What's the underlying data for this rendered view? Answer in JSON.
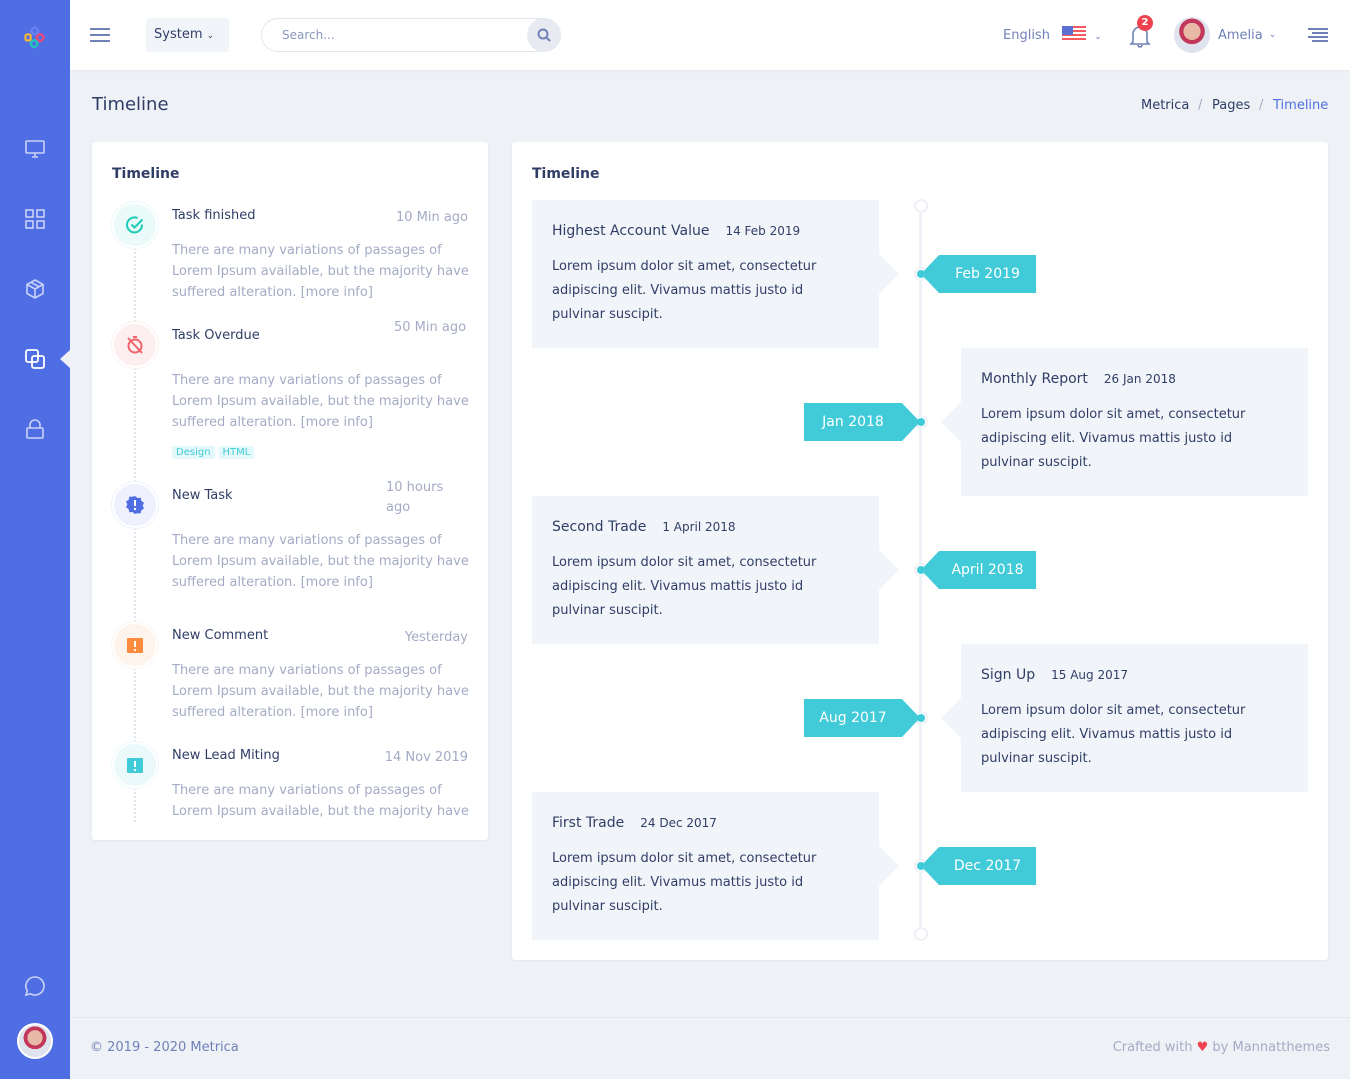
{
  "topbar": {
    "system_label": "System",
    "search_placeholder": "Search...",
    "language": "English",
    "notification_count": "2",
    "user_name": "Amelia"
  },
  "page": {
    "title": "Timeline",
    "breadcrumb": [
      "Metrica",
      "Pages",
      "Timeline"
    ]
  },
  "activity": {
    "title": "Timeline",
    "items": [
      {
        "title": "Task finished",
        "time": "10 Min ago",
        "text": "There are many variations of passages of Lorem Ipsum available, but the majority have suffered alteration.",
        "link": "[more info]",
        "icon": "check-circle-icon",
        "color": "#1ecab8",
        "bg": "#e9faf8"
      },
      {
        "title": "Task Overdue",
        "time": "50 Min ago",
        "text": "There are many variations of passages of Lorem Ipsum available, but the majority have suffered alteration.",
        "link": "[more info]",
        "icon": "timer-off-icon",
        "color": "#f1646c",
        "bg": "#fdeef0",
        "tags": [
          "Design",
          "HTML"
        ]
      },
      {
        "title": "New Task",
        "time": "10 hours ago",
        "text": "There are many variations of passages of Lorem Ipsum available, but the majority have suffered alteration.",
        "link": "[more info]",
        "icon": "alert-badge-icon",
        "color": "#506ee4",
        "bg": "#eef1fd"
      },
      {
        "title": "New Comment",
        "time": "Yesterday",
        "text": "There are many variations of passages of Lorem Ipsum available, but the majority have suffered alteration.",
        "link": "[more info]",
        "icon": "clipboard-alert-icon",
        "color": "#fd8b3e",
        "bg": "#fff4ec"
      },
      {
        "title": "New Lead Miting",
        "time": "14 Nov 2019",
        "text": "There are many variations of passages of Lorem Ipsum available, but the majority have",
        "link": "",
        "icon": "clipboard-alert-icon",
        "color": "#41cbd8",
        "bg": "#ecf9fb"
      }
    ]
  },
  "timeline": {
    "title": "Timeline",
    "items": [
      {
        "title": "Highest Account Value",
        "date": "14 Feb 2019",
        "text": "Lorem ipsum dolor sit amet, consectetur adipiscing elit. Vivamus mattis justo id pulvinar suscipit.",
        "badge": "Feb 2019",
        "side": "left"
      },
      {
        "title": "Monthly Report",
        "date": "26 Jan 2018",
        "text": "Lorem ipsum dolor sit amet, consectetur adipiscing elit. Vivamus mattis justo id pulvinar suscipit.",
        "badge": "Jan 2018",
        "side": "right"
      },
      {
        "title": "Second Trade",
        "date": "1 April 2018",
        "text": "Lorem ipsum dolor sit amet, consectetur adipiscing elit. Vivamus mattis justo id pulvinar suscipit.",
        "badge": "April 2018",
        "side": "left"
      },
      {
        "title": "Sign Up",
        "date": "15 Aug 2017",
        "text": "Lorem ipsum dolor sit amet, consectetur adipiscing elit. Vivamus mattis justo id pulvinar suscipit.",
        "badge": "Aug 2017",
        "side": "right"
      },
      {
        "title": "First Trade",
        "date": "24 Dec 2017",
        "text": "Lorem ipsum dolor sit amet, consectetur adipiscing elit. Vivamus mattis justo id pulvinar suscipit.",
        "badge": "Dec 2017",
        "side": "left"
      }
    ]
  },
  "footer": {
    "copyright": "© 2019 - 2020 Metrica",
    "crafted_prefix": "Crafted with",
    "crafted_suffix": "by Mannatthemes",
    "heart_color": "#f1434f"
  },
  "colors": {
    "sidebar": "#506ee4",
    "accent": "#41cbd8"
  }
}
